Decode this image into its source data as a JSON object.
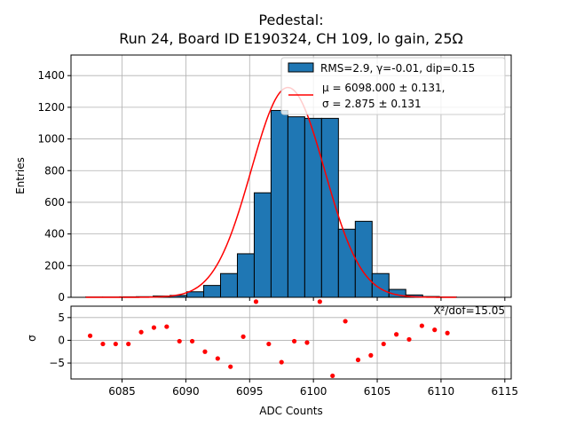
{
  "chart_data": {
    "type": "bar",
    "title_line1": "Pedestal:",
    "title_line2": "Run 24, Board ID E190324, CH 109, lo gain, 25Ω",
    "xlabel": "ADC Counts",
    "ylabel": "Entries",
    "residual_ylabel": "σ",
    "xlim": [
      6081,
      6115.5
    ],
    "ylim": [
      0,
      1530
    ],
    "residual_ylim": [
      -8.5,
      7.5
    ],
    "x_ticks": [
      6085,
      6090,
      6095,
      6100,
      6105,
      6110,
      6115
    ],
    "y_ticks": [
      0,
      200,
      400,
      600,
      800,
      1000,
      1200,
      1400
    ],
    "residual_y_ticks": [
      -5,
      0,
      5
    ],
    "grid": true,
    "legend_position": "top-right",
    "legend": {
      "hist_label": "RMS=2.9, γ=-0.01, dip=0.15",
      "fit_label_line1": "μ = 6098.000 ± 0.131,",
      "fit_label_line2": "σ = 2.875 ± 0.131"
    },
    "chi2_text": "X²/dof=15.05",
    "bar_color": "#1f77b4",
    "fit_color": "#ff0000",
    "residual_color": "#ff0000",
    "bin_width": 1.32,
    "bin_left_edges": [
      6082.16,
      6083.48,
      6084.8,
      6086.12,
      6087.44,
      6088.76,
      6090.08,
      6091.4,
      6092.72,
      6094.04,
      6095.36,
      6096.68,
      6098.0,
      6099.32,
      6100.64,
      6101.96,
      6103.28,
      6104.6,
      6105.92,
      6107.24,
      6108.56,
      6109.88
    ],
    "counts": [
      2,
      2,
      3,
      4,
      8,
      12,
      35,
      75,
      150,
      275,
      660,
      1180,
      1140,
      1130,
      1130,
      430,
      480,
      150,
      50,
      15,
      5,
      2
    ],
    "fit_mu": 6098.0,
    "fit_sigma": 2.875,
    "fit_amplitude": 1325,
    "fit_x_start": 6082.16,
    "fit_x_end": 6111.2,
    "residual_x": [
      6082.5,
      6083.5,
      6084.5,
      6085.5,
      6086.5,
      6087.5,
      6088.5,
      6089.5,
      6090.5,
      6091.5,
      6092.5,
      6093.5,
      6094.5,
      6095.5,
      6096.5,
      6097.5,
      6098.5,
      6099.5,
      6100.5,
      6101.5,
      6102.5,
      6103.5,
      6104.5,
      6105.5,
      6106.5,
      6107.5,
      6108.5,
      6109.5,
      6110.5
    ],
    "residual_y": [
      1.0,
      -0.8,
      -0.8,
      -0.8,
      1.8,
      2.8,
      3.0,
      -0.2,
      -0.2,
      -2.5,
      -4.0,
      -5.8,
      0.8,
      8.5,
      -0.8,
      -4.8,
      -0.2,
      -0.5,
      8.5,
      -7.8,
      4.2,
      -4.3,
      -3.3,
      -0.8,
      1.3,
      0.2,
      3.2,
      2.3,
      1.6
    ]
  }
}
